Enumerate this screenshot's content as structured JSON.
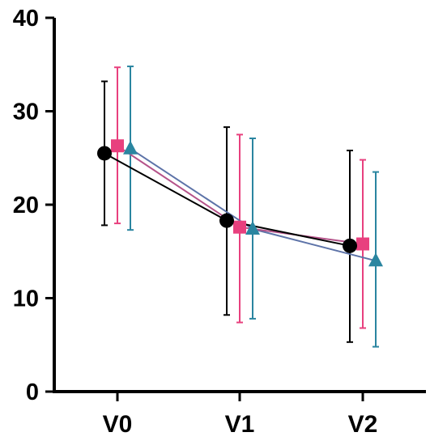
{
  "chart_data": {
    "type": "line",
    "title": "",
    "xlabel": "",
    "ylabel": "",
    "categories": [
      "V0",
      "V1",
      "V2"
    ],
    "ylim": [
      0,
      40
    ],
    "yticks": [
      "0",
      "10",
      "20",
      "30",
      "40"
    ],
    "grid": false,
    "legend": "none",
    "series": [
      {
        "marker": "circle",
        "color": "#000000",
        "values": [
          25.5,
          18.3,
          15.6
        ],
        "error_low": [
          17.8,
          8.2,
          5.3
        ],
        "error_high": [
          33.2,
          28.3,
          25.8
        ]
      },
      {
        "marker": "square",
        "color": "#e8407e",
        "line_color": "#b5538a",
        "values": [
          26.3,
          17.6,
          15.8
        ],
        "error_low": [
          18.0,
          7.4,
          6.8
        ],
        "error_high": [
          34.7,
          27.5,
          24.8
        ]
      },
      {
        "marker": "triangle",
        "color": "#2a85a0",
        "line_color": "#5d73a8",
        "values": [
          26.0,
          17.4,
          14.0
        ],
        "error_low": [
          17.3,
          7.8,
          4.8
        ],
        "error_high": [
          34.8,
          27.1,
          23.5
        ]
      }
    ]
  }
}
